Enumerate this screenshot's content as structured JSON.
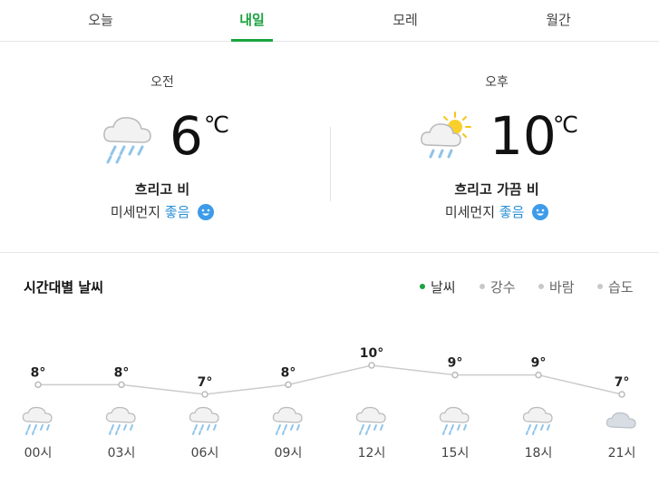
{
  "tabs": [
    {
      "label": "오늘",
      "active": false
    },
    {
      "label": "내일",
      "active": true
    },
    {
      "label": "모레",
      "active": false
    },
    {
      "label": "월간",
      "active": false
    }
  ],
  "am": {
    "period": "오전",
    "temp": "6",
    "unit": "℃",
    "icon": "cloud-rain-icon",
    "desc": "흐리고 비",
    "dust_label": "미세먼지",
    "dust_value": "좋음"
  },
  "pm": {
    "period": "오후",
    "temp": "10",
    "unit": "℃",
    "icon": "partly-sunny-rain-icon",
    "desc": "흐리고 가끔 비",
    "dust_label": "미세먼지",
    "dust_value": "좋음"
  },
  "hourly": {
    "title": "시간대별 날씨",
    "legend": [
      {
        "label": "날씨",
        "active": true
      },
      {
        "label": "강수",
        "active": false
      },
      {
        "label": "바람",
        "active": false
      },
      {
        "label": "습도",
        "active": false
      }
    ]
  },
  "colors": {
    "accent": "#1aa33e",
    "dust_good": "#2a8fd8",
    "line": "#cccccc"
  },
  "chart_data": {
    "type": "line",
    "categories": [
      "00시",
      "03시",
      "06시",
      "09시",
      "12시",
      "15시",
      "18시",
      "21시"
    ],
    "values": [
      8,
      8,
      7,
      8,
      10,
      9,
      9,
      7
    ],
    "value_labels": [
      "8°",
      "8°",
      "7°",
      "8°",
      "10°",
      "9°",
      "9°",
      "7°"
    ],
    "icons": [
      "rain-icon",
      "rain-icon",
      "rain-icon",
      "rain-icon",
      "rain-icon",
      "rain-icon",
      "rain-icon",
      "cloud-icon"
    ],
    "grid": false
  }
}
